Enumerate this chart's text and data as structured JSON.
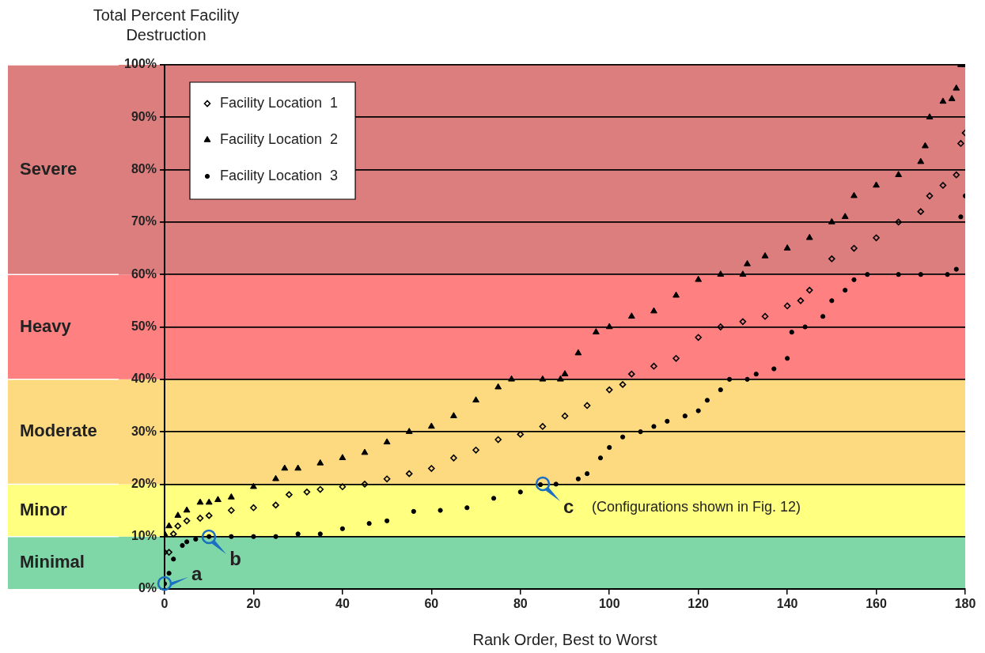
{
  "chart_data": {
    "type": "scatter",
    "ylabel": "Total Percent Facility Destruction",
    "xlabel": "Rank Order, Best to Worst",
    "xlim": [
      0,
      180
    ],
    "xticks": [
      0,
      20,
      40,
      60,
      80,
      100,
      120,
      140,
      160,
      180
    ],
    "ylim": [
      0,
      100
    ],
    "yticks": [
      {
        "value": 0,
        "label": "0%"
      },
      {
        "value": 10,
        "label": "10%"
      },
      {
        "value": 20,
        "label": "20%"
      },
      {
        "value": 30,
        "label": "30%"
      },
      {
        "value": 40,
        "label": "40%"
      },
      {
        "value": 50,
        "label": "50%"
      },
      {
        "value": 60,
        "label": "60%"
      },
      {
        "value": 70,
        "label": "70%"
      },
      {
        "value": 80,
        "label": "80%"
      },
      {
        "value": 90,
        "label": "90%"
      },
      {
        "value": 100,
        "label": "100%"
      }
    ],
    "grid": "y",
    "legend": "top left",
    "bands": [
      {
        "axis": "y",
        "from": 0,
        "to": 10,
        "label": "Minimal",
        "color": "#7fd7a8"
      },
      {
        "axis": "y",
        "from": 10,
        "to": 20,
        "label": "Minor",
        "color": "#ffff80"
      },
      {
        "axis": "y",
        "from": 20,
        "to": 40,
        "label": "Moderate",
        "color": "#fdd980"
      },
      {
        "axis": "y",
        "from": 40,
        "to": 60,
        "label": "Heavy",
        "color": "#ff8080"
      },
      {
        "axis": "y",
        "from": 60,
        "to": 100,
        "label": "Severe",
        "color": "#dc7e7e"
      }
    ],
    "series": [
      {
        "name": "Facility Location  1",
        "color": "#000000",
        "marker": "diamond",
        "x": [
          0,
          1,
          2,
          3,
          5,
          8,
          10,
          15,
          20,
          25,
          28,
          32,
          35,
          40,
          45,
          50,
          55,
          60,
          65,
          70,
          75,
          80,
          85,
          90,
          95,
          100,
          103,
          105,
          110,
          115,
          120,
          125,
          130,
          135,
          140,
          143,
          145,
          150,
          155,
          160,
          165,
          170,
          172,
          175,
          178,
          179,
          180
        ],
        "values": [
          7,
          7,
          10.5,
          12,
          13,
          13.5,
          14,
          15,
          15.5,
          16,
          18,
          18.5,
          19,
          19.5,
          20,
          21,
          22,
          23,
          25,
          26.5,
          28.5,
          29.5,
          31,
          33,
          35,
          38,
          39,
          41,
          42.5,
          44,
          48,
          50,
          51,
          52,
          54,
          55,
          57,
          63,
          65,
          67,
          70,
          72,
          75,
          77,
          79,
          85,
          87
        ]
      },
      {
        "name": "Facility Location  2",
        "color": "#000000",
        "marker": "triangle",
        "x": [
          0,
          1,
          3,
          5,
          8,
          10,
          12,
          15,
          20,
          25,
          27,
          30,
          35,
          40,
          45,
          50,
          55,
          60,
          65,
          70,
          75,
          78,
          85,
          89,
          90,
          93,
          97,
          100,
          105,
          110,
          115,
          120,
          125,
          130,
          131,
          135,
          140,
          145,
          150,
          153,
          155,
          160,
          165,
          170,
          171,
          172,
          175,
          177,
          178,
          179,
          180
        ],
        "values": [
          10.5,
          12,
          14,
          15,
          16.5,
          16.5,
          17,
          17.5,
          19.5,
          21,
          23,
          23,
          24,
          25,
          26,
          28,
          30,
          31,
          33,
          36,
          38.5,
          40,
          40,
          40,
          41,
          45,
          49,
          50,
          52,
          53,
          56,
          59,
          60,
          60,
          62,
          63.5,
          65,
          67,
          70,
          71,
          75,
          77,
          79,
          81.5,
          84.5,
          90,
          93,
          93.5,
          95.5,
          100,
          100
        ]
      },
      {
        "name": "Facility Location  3",
        "color": "#000000",
        "marker": "circle",
        "x": [
          0,
          1,
          2,
          4,
          5,
          7,
          10,
          15,
          20,
          25,
          30,
          35,
          40,
          46,
          50,
          56,
          62,
          68,
          74,
          80,
          84.5,
          88,
          93,
          95,
          98,
          100,
          103,
          107,
          110,
          113,
          117,
          120,
          122,
          125,
          127,
          131,
          133,
          137,
          140,
          141,
          144,
          148,
          150,
          153,
          155,
          158,
          165,
          170,
          176,
          178,
          179,
          180
        ],
        "values": [
          1,
          3,
          5.7,
          8.3,
          9,
          9.5,
          10,
          10,
          10,
          10,
          10.5,
          10.5,
          11.5,
          12.5,
          13,
          14.8,
          15,
          15.5,
          17.3,
          18.5,
          19.9,
          20,
          21,
          22,
          25,
          27,
          29,
          30,
          31,
          32,
          33,
          34,
          36,
          38,
          40,
          40,
          41,
          42,
          44,
          49,
          50,
          52,
          55,
          57,
          59,
          60,
          60,
          60,
          60,
          61,
          71,
          75
        ]
      }
    ],
    "annotations": [
      {
        "text": "a",
        "x": 0,
        "y": 1
      },
      {
        "text": "b",
        "x": 10,
        "y": 10
      },
      {
        "text": "c",
        "x": 85,
        "y": 20
      },
      "(Configurations shown in Fig. 12)"
    ]
  }
}
